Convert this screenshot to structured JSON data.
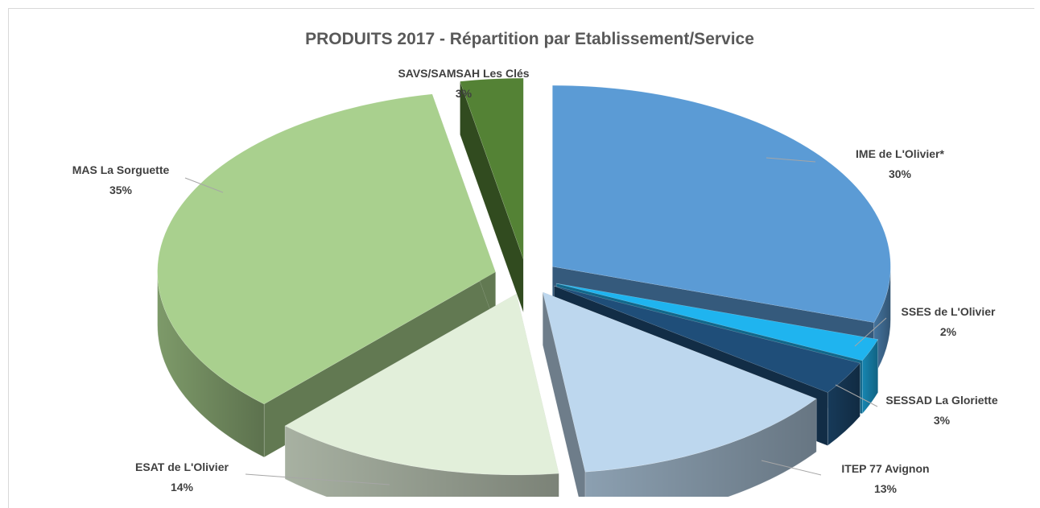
{
  "chart_data": {
    "type": "pie",
    "title": "PRODUITS 2017 - Répartition par Etablissement/Service",
    "three_d": true,
    "exploded": true,
    "slices": [
      {
        "name": "IME de L'Olivier*",
        "value": 30,
        "label": "30%",
        "color": "#5b9bd5"
      },
      {
        "name": "SSES de L'Olivier",
        "value": 2,
        "label": "2%",
        "color": "#1fb4ef"
      },
      {
        "name": "SESSAD La Gloriette",
        "value": 3,
        "label": "3%",
        "color": "#1f4e79"
      },
      {
        "name": "ITEP 77 Avignon",
        "value": 13,
        "label": "13%",
        "color": "#bdd7ee"
      },
      {
        "name": "ESAT de L'Olivier",
        "value": 14,
        "label": "14%",
        "color": "#e2efda"
      },
      {
        "name": "MAS La Sorguette",
        "value": 35,
        "label": "35%",
        "color": "#a9d08e"
      },
      {
        "name": "SAVS/SAMSAH Les Clés",
        "value": 3,
        "label": "3%",
        "color": "#548235"
      }
    ]
  }
}
